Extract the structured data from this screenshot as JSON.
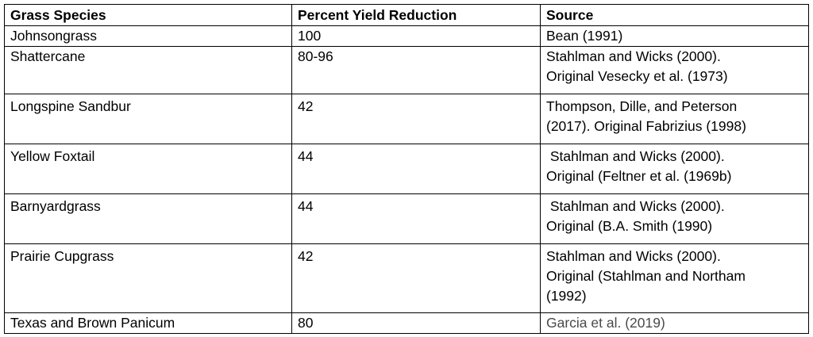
{
  "table": {
    "headers": [
      "Grass Species",
      "Percent Yield Reduction",
      "Source"
    ],
    "rows": [
      {
        "species": "Johnsongrass",
        "reduction": "100",
        "source": [
          "Bean (1991)"
        ]
      },
      {
        "species": "Shattercane",
        "reduction": "80-96",
        "source": [
          "Stahlman and Wicks (2000).",
          "Original Vesecky et al. (1973)"
        ]
      },
      {
        "species": "Longspine Sandbur",
        "reduction": "42",
        "source": [
          "Thompson, Dille, and Peterson",
          "(2017). Original Fabrizius (1998)"
        ]
      },
      {
        "species": "Yellow Foxtail",
        "reduction": "44",
        "source": [
          " Stahlman and Wicks (2000).",
          "Original (Feltner et al. (1969b)"
        ]
      },
      {
        "species": "Barnyardgrass",
        "reduction": "44",
        "source": [
          " Stahlman and Wicks (2000).",
          "Original (B.A. Smith (1990)"
        ]
      },
      {
        "species": "Prairie Cupgrass",
        "reduction": "42",
        "source": [
          "Stahlman and Wicks (2000).",
          "Original (Stahlman and Northam",
          "(1992)"
        ]
      },
      {
        "species": "Texas and Brown Panicum",
        "reduction": "80",
        "source": [
          "Garcia et al. (2019)"
        ]
      }
    ]
  }
}
